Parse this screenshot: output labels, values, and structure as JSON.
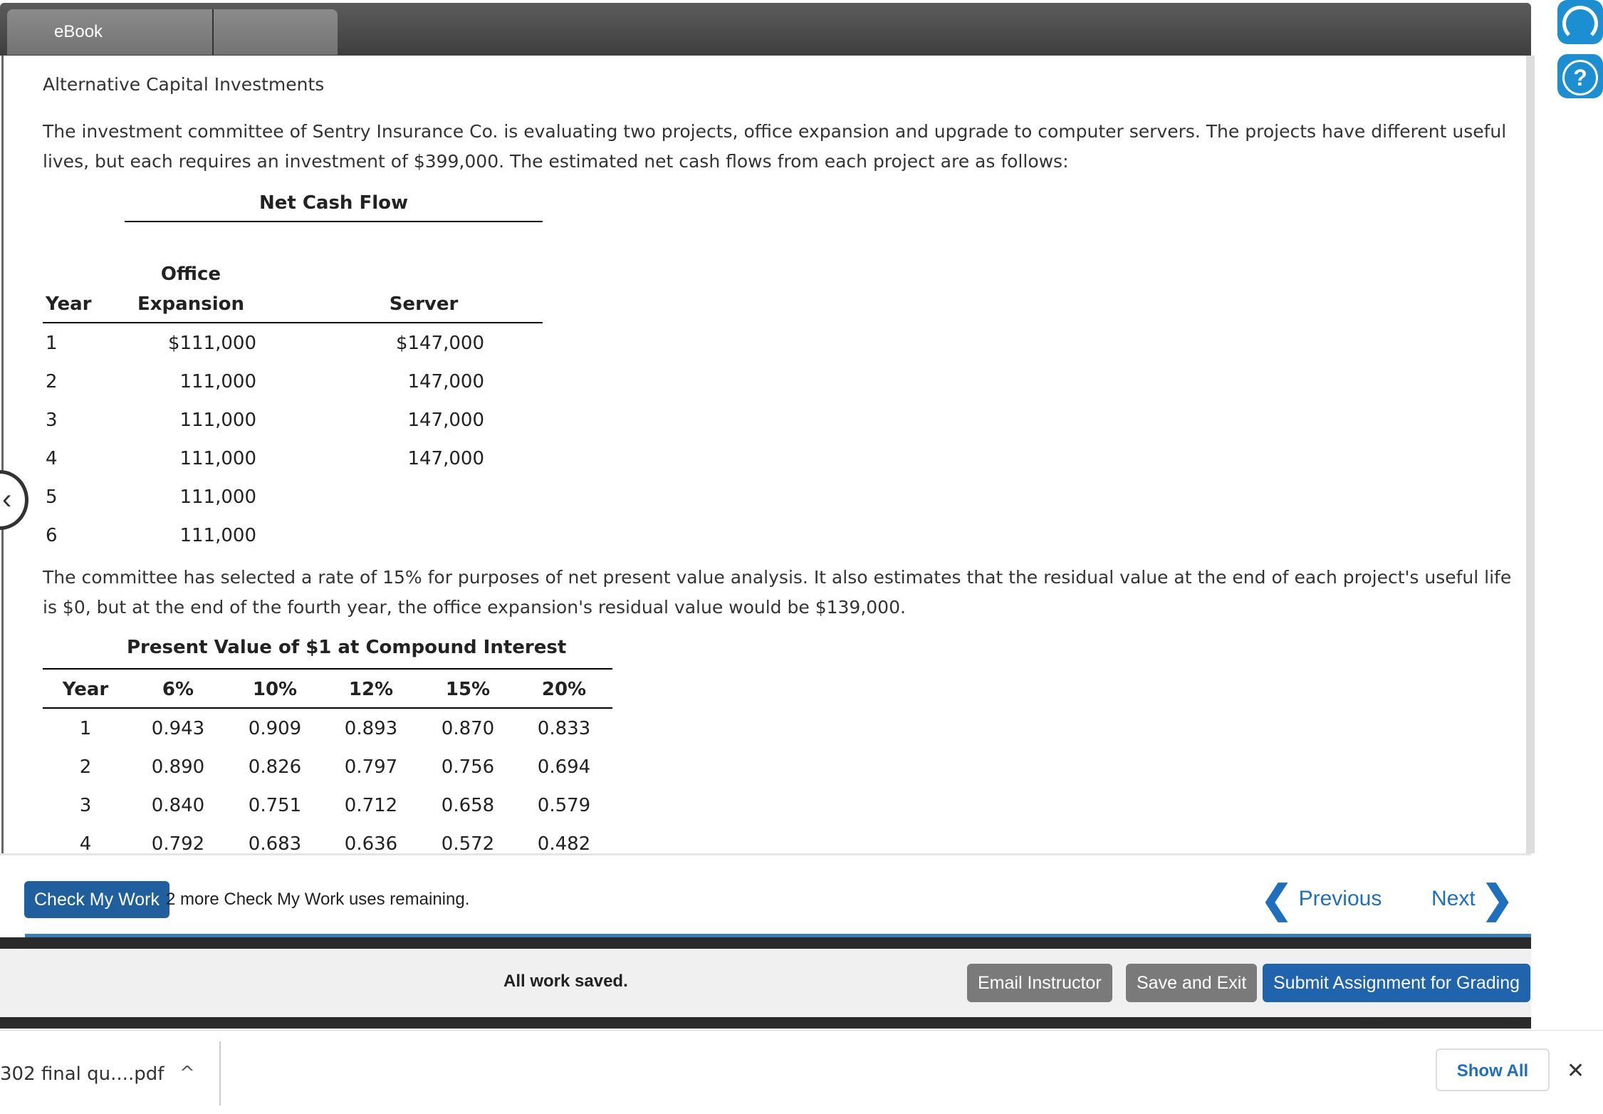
{
  "tabs": {
    "ebook": "eBook"
  },
  "problem": {
    "title": "Alternative Capital Investments",
    "intro": "The investment committee of Sentry Insurance Co. is evaluating two projects, office expansion and upgrade to computer servers. The projects have different useful lives, but each requires an investment of $399,000. The estimated net cash flows from each project are as follows:",
    "details": "The committee has selected a rate of 15% for purposes of net present value analysis. It also estimates that the residual value at the end of each project's useful life is $0, but at the end of the fourth year, the office expansion's residual value would be $139,000."
  },
  "net_cash_flow": {
    "title": "Net Cash Flow",
    "headers": {
      "year": "Year",
      "office_line1": "Office",
      "office_line2": "Expansion",
      "server": "Server"
    },
    "rows": [
      {
        "year": "1",
        "office": "$111,000",
        "server": "$147,000"
      },
      {
        "year": "2",
        "office": "111,000",
        "server": "147,000"
      },
      {
        "year": "3",
        "office": "111,000",
        "server": "147,000"
      },
      {
        "year": "4",
        "office": "111,000",
        "server": "147,000"
      },
      {
        "year": "5",
        "office": "111,000",
        "server": ""
      },
      {
        "year": "6",
        "office": "111,000",
        "server": ""
      }
    ]
  },
  "present_value": {
    "title": "Present Value of $1 at Compound Interest",
    "headers": [
      "Year",
      "6%",
      "10%",
      "12%",
      "15%",
      "20%"
    ],
    "rows": [
      [
        "1",
        "0.943",
        "0.909",
        "0.893",
        "0.870",
        "0.833"
      ],
      [
        "2",
        "0.890",
        "0.826",
        "0.797",
        "0.756",
        "0.694"
      ],
      [
        "3",
        "0.840",
        "0.751",
        "0.712",
        "0.658",
        "0.579"
      ],
      [
        "4",
        "0.792",
        "0.683",
        "0.636",
        "0.572",
        "0.482"
      ]
    ]
  },
  "actions": {
    "check_my_work": "Check My Work",
    "check_note": "2 more Check My Work uses remaining.",
    "previous": "Previous",
    "next": "Next"
  },
  "footer": {
    "status": "All work saved.",
    "email": "Email Instructor",
    "save_exit": "Save and Exit",
    "submit": "Submit Assignment for Grading"
  },
  "download_bar": {
    "file_name": "302 final qu....pdf",
    "show_all": "Show All"
  },
  "colors": {
    "primary": "#1f64ad",
    "link": "#1f6fbf",
    "topbar": "#4a4a4a"
  },
  "icons": [
    "support-headset-icon",
    "help-icon",
    "collapse-left-icon",
    "chevron-left-icon",
    "chevron-right-icon",
    "caret-up-icon",
    "close-icon"
  ]
}
